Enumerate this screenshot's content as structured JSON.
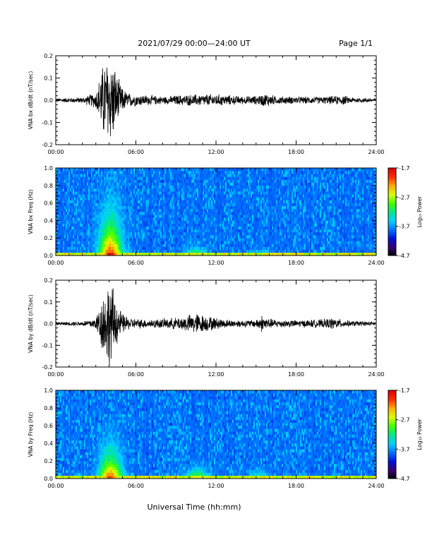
{
  "header": {
    "title": "2021/07/29  00:00—24:00 UT",
    "page": "Page 1/1"
  },
  "footer": {
    "xlabel": "Universal Time (hh:mm)"
  },
  "colors": {
    "trace": "#000000",
    "colorscale": [
      "#000000",
      "#3a0070",
      "#0010d8",
      "#0070ff",
      "#00d0ff",
      "#00e890",
      "#40ff00",
      "#d8ff00",
      "#ffb000",
      "#ff3000",
      "#e00000"
    ]
  },
  "chart_data": [
    {
      "type": "line",
      "id": "bx-waveform",
      "ylabel": "VNA bx dB/dt (nT/sec)",
      "xlim": [
        "00:00",
        "24:00"
      ],
      "xticks": [
        "00:00",
        "06:00",
        "12:00",
        "18:00",
        "24:00"
      ],
      "ylim": [
        -0.2,
        0.2
      ],
      "yticks": [
        "-0.2",
        "-0.1",
        "0.0",
        "0.1",
        "0.2"
      ],
      "envelope_hours": [
        0,
        1,
        2,
        3,
        3.3,
        3.6,
        4,
        4.3,
        4.6,
        5,
        5.5,
        6,
        7,
        8,
        8.5,
        9,
        10,
        11,
        12,
        13,
        14,
        15,
        15.8,
        16.5,
        17,
        18,
        19,
        20,
        21,
        21.5,
        22,
        23,
        24
      ],
      "envelope_amp": [
        0.01,
        0.012,
        0.015,
        0.04,
        0.12,
        0.2,
        0.22,
        0.2,
        0.12,
        0.06,
        0.035,
        0.03,
        0.025,
        0.02,
        0.02,
        0.025,
        0.028,
        0.03,
        0.03,
        0.025,
        0.02,
        0.022,
        0.035,
        0.02,
        0.02,
        0.018,
        0.018,
        0.018,
        0.022,
        0.025,
        0.015,
        0.012,
        0.01
      ]
    },
    {
      "type": "heatmap",
      "id": "bx-spectrogram",
      "ylabel": "VNA bx Freq (Hz)",
      "xlim": [
        "00:00",
        "24:00"
      ],
      "xticks": [
        "00:00",
        "06:00",
        "12:00",
        "18:00",
        "24:00"
      ],
      "ylim": [
        0,
        1.0
      ],
      "yticks": [
        "0.0",
        "0.2",
        "0.4",
        "0.6",
        "0.8",
        "1.0"
      ],
      "colorbar": {
        "label": "Log₁₀ Power",
        "range": [
          -4.7,
          -1.7
        ],
        "ticks": [
          "-1.7",
          "-2.7",
          "-3.7",
          "-4.7"
        ]
      },
      "features": [
        {
          "hour": 4.1,
          "power": -1.8,
          "freq_extent": 0.35
        },
        {
          "hour": 10.5,
          "power": -2.4,
          "freq_extent": 0.06
        },
        {
          "hour": 15.5,
          "power": -2.6,
          "freq_extent": 0.04
        }
      ]
    },
    {
      "type": "line",
      "id": "by-waveform",
      "ylabel": "VNA by dB/dt (nT/sec)",
      "xlim": [
        "00:00",
        "24:00"
      ],
      "xticks": [
        "00:00",
        "06:00",
        "12:00",
        "18:00",
        "24:00"
      ],
      "ylim": [
        -0.2,
        0.2
      ],
      "yticks": [
        "-0.2",
        "-0.1",
        "0.0",
        "0.1",
        "0.2"
      ],
      "envelope_hours": [
        0,
        1,
        2,
        3,
        3.3,
        3.6,
        4,
        4.3,
        4.6,
        5,
        5.5,
        6,
        7,
        8,
        9,
        10,
        10.5,
        11,
        12,
        13,
        14,
        15,
        15.4,
        16,
        17,
        18,
        19,
        20,
        20.7,
        21.5,
        22,
        23,
        24
      ],
      "envelope_amp": [
        0.008,
        0.01,
        0.012,
        0.03,
        0.1,
        0.17,
        0.22,
        0.18,
        0.1,
        0.05,
        0.03,
        0.025,
        0.022,
        0.025,
        0.03,
        0.045,
        0.055,
        0.045,
        0.03,
        0.02,
        0.018,
        0.02,
        0.045,
        0.025,
        0.02,
        0.018,
        0.02,
        0.022,
        0.03,
        0.02,
        0.015,
        0.012,
        0.01
      ]
    },
    {
      "type": "heatmap",
      "id": "by-spectrogram",
      "ylabel": "VNA by Freq (Hz)",
      "xlim": [
        "00:00",
        "24:00"
      ],
      "xticks": [
        "00:00",
        "06:00",
        "12:00",
        "18:00",
        "24:00"
      ],
      "ylim": [
        0,
        1.0
      ],
      "yticks": [
        "0.0",
        "0.2",
        "0.4",
        "0.6",
        "0.8",
        "1.0"
      ],
      "colorbar": {
        "label": "Log₁₀ Power",
        "range": [
          -4.7,
          -1.7
        ],
        "ticks": [
          "-1.7",
          "-2.7",
          "-3.7",
          "-4.7"
        ]
      },
      "features": [
        {
          "hour": 4.1,
          "power": -1.9,
          "freq_extent": 0.25
        },
        {
          "hour": 10.6,
          "power": -2.3,
          "freq_extent": 0.08
        },
        {
          "hour": 15.2,
          "power": -2.6,
          "freq_extent": 0.05
        }
      ]
    }
  ]
}
